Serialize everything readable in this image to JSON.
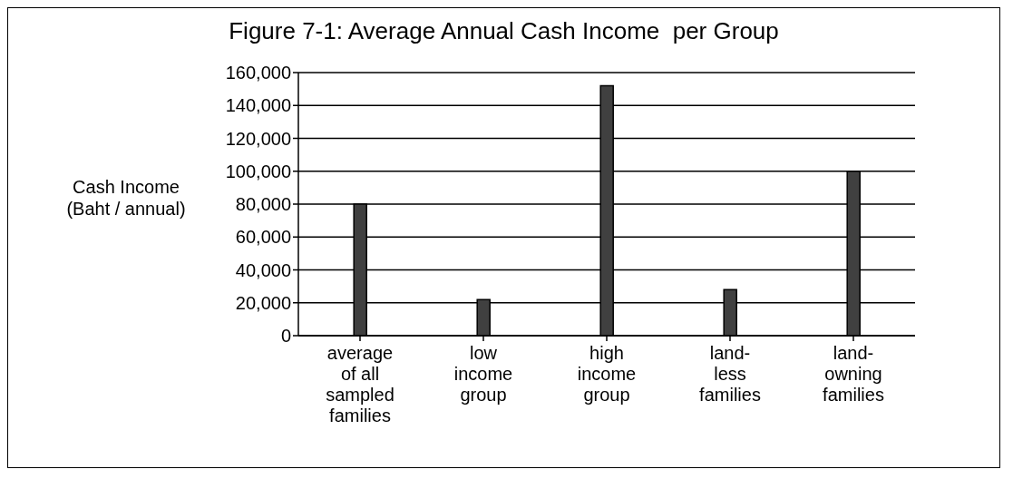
{
  "chart_data": {
    "type": "bar",
    "title": "Figure 7-1: Average Annual Cash Income  per Group",
    "ylabel": "Cash Income\n(Baht / annual)",
    "categories": [
      "average of all sampled families",
      "low income group",
      "high income group",
      "land-less families",
      "land-owning families"
    ],
    "values": [
      80000,
      22000,
      152000,
      28000,
      100000
    ],
    "color": "#404040",
    "ylim": [
      0,
      160000
    ],
    "yticks": [
      0,
      {
        "value": 20000,
        "label": "20,000"
      },
      {
        "value": 40000,
        "label": "40,000"
      },
      {
        "value": 60000,
        "label": "60,000"
      },
      {
        "value": 80000,
        "label": "80,000"
      },
      {
        "value": 100000,
        "label": "100,000"
      },
      {
        "value": 120000,
        "label": "120,000"
      },
      {
        "value": 140000,
        "label": "140,000"
      },
      {
        "value": 160000,
        "label": "160,000"
      }
    ],
    "grid": "y"
  }
}
